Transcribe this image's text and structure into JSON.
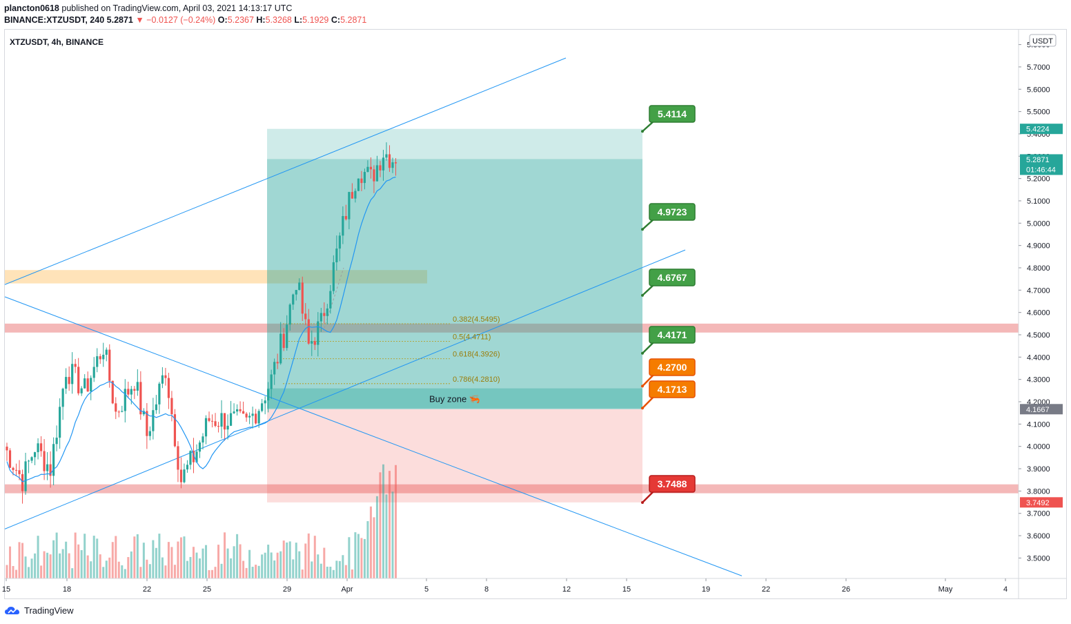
{
  "header": {
    "author": "plancton0618",
    "published_text": "published on TradingView.com, April 03, 2021 14:13:17 UTC",
    "symbol_line": "BINANCE:XTZUSDT, 240",
    "last": "5.2871",
    "change": "−0.0127 (−0.24%)",
    "o_label": "O:",
    "o": "5.2367",
    "h_label": "H:",
    "h": "5.3268",
    "l_label": "L:",
    "l": "5.1929",
    "c_label": "C:",
    "c": "5.2871"
  },
  "legend_title": "XTZUSDT, 4h, BINANCE",
  "currency_label": "USDT",
  "footer_brand": "TradingView",
  "colors": {
    "up": "#26a69a",
    "down": "#ef5350",
    "line_blue": "#2196f3",
    "target_green": "#43a047",
    "entry_orange": "#f57c00",
    "stop_red": "#e53935"
  },
  "chart_data": {
    "type": "candlestick",
    "symbol": "XTZUSDT",
    "interval": "4h",
    "exchange": "BINANCE",
    "y_ticks": [
      "5.8000",
      "5.7000",
      "5.6000",
      "5.5000",
      "5.4000",
      "5.3000",
      "5.2000",
      "5.1000",
      "5.0000",
      "4.9000",
      "4.8000",
      "4.7000",
      "4.6000",
      "4.5000",
      "4.4000",
      "4.3000",
      "4.2000",
      "4.1000",
      "4.0000",
      "3.9000",
      "3.8000",
      "3.7000",
      "3.6000",
      "3.5000"
    ],
    "x_ticks": [
      "15",
      "18",
      "22",
      "25",
      "29",
      "Apr",
      "5",
      "8",
      "12",
      "15",
      "19",
      "22",
      "26",
      "May",
      "4"
    ],
    "price_labels": [
      {
        "text": "5.4224",
        "value": 5.4224,
        "kind": "target"
      },
      {
        "text": "5.2871",
        "sub": "01:46:44",
        "value": 5.2871,
        "kind": "last"
      },
      {
        "text": "4.1667",
        "value": 4.1667,
        "kind": "entry"
      },
      {
        "text": "3.7492",
        "value": 3.7492,
        "kind": "stop"
      }
    ],
    "callouts": [
      {
        "text": "5.4114",
        "value": 5.4114,
        "color": "green"
      },
      {
        "text": "4.9723",
        "value": 4.9723,
        "color": "green"
      },
      {
        "text": "4.6767",
        "value": 4.6767,
        "color": "green"
      },
      {
        "text": "4.4171",
        "value": 4.4171,
        "color": "green"
      },
      {
        "text": "4.2700",
        "value": 4.27,
        "color": "orange"
      },
      {
        "text": "4.1713",
        "value": 4.1713,
        "color": "orange"
      },
      {
        "text": "3.7488",
        "value": 3.7488,
        "color": "red"
      }
    ],
    "fib_levels": [
      {
        "text": "0.382(4.5495)",
        "value": 4.5495
      },
      {
        "text": "0.5(4.4711)",
        "value": 4.4711
      },
      {
        "text": "0.618(4.3926)",
        "value": 4.3926
      },
      {
        "text": "0.786(4.2810)",
        "value": 4.281
      }
    ],
    "zones": [
      {
        "name": "resistance",
        "low": 4.73,
        "high": 4.79
      },
      {
        "name": "support",
        "low": 4.51,
        "high": 4.55
      },
      {
        "name": "support-low",
        "low": 3.79,
        "high": 3.83
      }
    ],
    "position": {
      "entry": 4.1667,
      "target": 5.4224,
      "stop": 3.7492,
      "buy_zone_low": 4.17,
      "buy_zone_high": 4.26
    },
    "buy_zone_label": "Buy zone 🦐"
  }
}
